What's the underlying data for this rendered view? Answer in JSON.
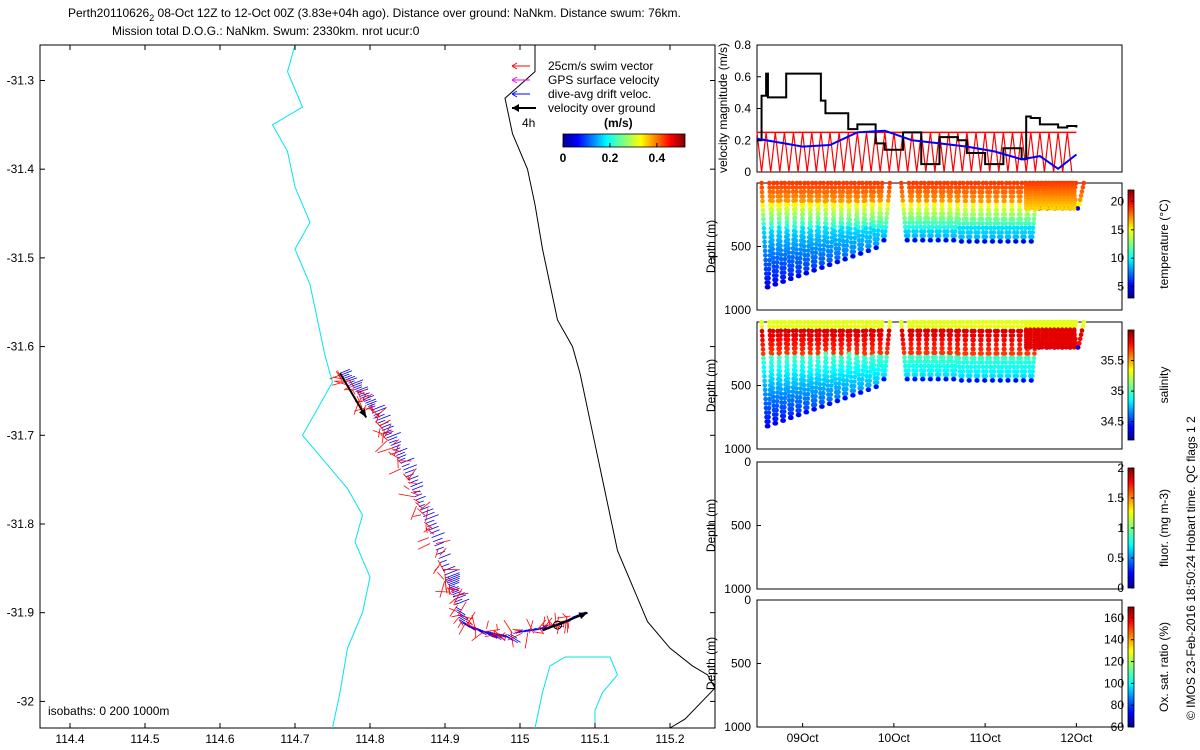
{
  "title": {
    "line1_prefix": "Perth20110626",
    "line1_sub": "2",
    "line1_rest": " 08-Oct 12Z to 12-Oct 00Z (3.83e+04h ago). Distance over ground: NaNkm. Distance swum: 76km.",
    "line2": "Mission total D.O.G.: NaNkm. Swum: 2330km. nrot ucur:0"
  },
  "colors": {
    "swim": "#ff0000",
    "gps": "#ff00ff",
    "drift": "#0000ff",
    "ground": "#000000",
    "coast": "#00e5ee",
    "isobath": "#000000"
  },
  "map": {
    "x_ticks": [
      "114.4",
      "114.5",
      "114.6",
      "114.7",
      "114.8",
      "114.9",
      "115",
      "115.1",
      "115.2"
    ],
    "y_ticks": [
      "-31.3",
      "-31.4",
      "-31.5",
      "-31.6",
      "-31.7",
      "-31.8",
      "-31.9",
      "-32"
    ],
    "xlim": [
      114.36,
      115.26
    ],
    "ylim": [
      -32.03,
      -31.26
    ],
    "isobath_label": "isobaths: 0   200   1000m",
    "legend": {
      "swim": "25cm/s swim vector",
      "gps": "GPS surface velocity",
      "drift": "dive-avg drift veloc.",
      "ground": "velocity over ground",
      "scale_label": "4h"
    },
    "colorbar": {
      "title": "(m/s)",
      "ticks": [
        "0",
        "0.2",
        "0.4"
      ],
      "range": [
        0,
        0.52
      ]
    },
    "track": [
      [
        114.76,
        -31.63
      ],
      [
        114.78,
        -31.65
      ],
      [
        114.8,
        -31.67
      ],
      [
        114.82,
        -31.7
      ],
      [
        114.84,
        -31.73
      ],
      [
        114.86,
        -31.77
      ],
      [
        114.88,
        -31.81
      ],
      [
        114.9,
        -31.86
      ],
      [
        114.91,
        -31.88
      ],
      [
        114.92,
        -31.91
      ],
      [
        114.95,
        -31.92
      ],
      [
        114.98,
        -31.925
      ],
      [
        115.02,
        -31.92
      ],
      [
        115.05,
        -31.915
      ],
      [
        115.07,
        -31.905
      ]
    ],
    "coast_line": [
      [
        114.7,
        -31.26
      ],
      [
        114.69,
        -31.29
      ],
      [
        114.71,
        -31.33
      ],
      [
        114.67,
        -31.35
      ],
      [
        114.69,
        -31.38
      ],
      [
        114.7,
        -31.42
      ],
      [
        114.72,
        -31.46
      ],
      [
        114.7,
        -31.49
      ],
      [
        114.72,
        -31.53
      ],
      [
        114.73,
        -31.57
      ],
      [
        114.74,
        -31.61
      ],
      [
        114.75,
        -31.64
      ],
      [
        114.73,
        -31.67
      ],
      [
        114.71,
        -31.7
      ],
      [
        114.74,
        -31.73
      ],
      [
        114.77,
        -31.76
      ],
      [
        114.79,
        -31.79
      ],
      [
        114.78,
        -31.82
      ],
      [
        114.8,
        -31.86
      ],
      [
        114.79,
        -31.9
      ],
      [
        114.77,
        -31.94
      ],
      [
        114.76,
        -31.99
      ],
      [
        114.75,
        -32.03
      ]
    ],
    "coast_line2": [
      [
        115.02,
        -32.03
      ],
      [
        115.03,
        -31.99
      ],
      [
        115.04,
        -31.96
      ],
      [
        115.06,
        -31.95
      ],
      [
        115.09,
        -31.95
      ],
      [
        115.12,
        -31.95
      ],
      [
        115.13,
        -31.97
      ],
      [
        115.11,
        -31.99
      ],
      [
        115.1,
        -32.01
      ],
      [
        115.1,
        -32.03
      ]
    ],
    "isobath_line": [
      [
        115.02,
        -31.26
      ],
      [
        115.02,
        -31.29
      ],
      [
        114.98,
        -31.32
      ],
      [
        114.99,
        -31.36
      ],
      [
        115.01,
        -31.4
      ],
      [
        115.02,
        -31.44
      ],
      [
        115.03,
        -31.49
      ],
      [
        115.04,
        -31.53
      ],
      [
        115.05,
        -31.57
      ],
      [
        115.07,
        -31.6
      ],
      [
        115.08,
        -31.63
      ],
      [
        115.09,
        -31.67
      ],
      [
        115.1,
        -31.71
      ],
      [
        115.11,
        -31.75
      ],
      [
        115.12,
        -31.79
      ],
      [
        115.13,
        -31.83
      ],
      [
        115.15,
        -31.87
      ],
      [
        115.17,
        -31.91
      ],
      [
        115.2,
        -31.94
      ],
      [
        115.23,
        -31.96
      ],
      [
        115.25,
        -31.97
      ],
      [
        115.26,
        -31.985
      ],
      [
        115.22,
        -32.02
      ],
      [
        115.2,
        -32.03
      ]
    ]
  },
  "chart_data": [
    {
      "type": "line",
      "panel": "velocity",
      "ylabel": "velocity magnitude (m/s)",
      "ylim": [
        0,
        0.8
      ],
      "y_ticks": [
        "0",
        "0.2",
        "0.4",
        "0.6",
        "0.8"
      ],
      "xlim": [
        8.5,
        12.5
      ],
      "series": [
        {
          "name": "velocity over ground",
          "color": "#000000",
          "x": [
            8.5,
            8.55,
            8.6,
            8.62,
            8.8,
            8.82,
            9.2,
            9.25,
            9.5,
            9.6,
            9.8,
            9.9,
            10.1,
            10.3,
            10.5,
            10.7,
            10.8,
            11.0,
            11.2,
            11.4,
            11.45,
            11.5,
            11.6,
            11.8,
            11.9,
            12.0
          ],
          "y": [
            0.2,
            0.48,
            0.62,
            0.47,
            0.47,
            0.62,
            0.45,
            0.37,
            0.27,
            0.3,
            0.18,
            0.14,
            0.25,
            0.05,
            0.22,
            0.2,
            0.12,
            0.05,
            0.15,
            0.08,
            0.35,
            0.34,
            0.3,
            0.28,
            0.29,
            0.28
          ]
        },
        {
          "name": "dive-avg drift veloc.",
          "color": "#0000ff",
          "x": [
            8.5,
            8.8,
            9.0,
            9.3,
            9.6,
            9.9,
            10.2,
            10.5,
            10.8,
            11.1,
            11.4,
            11.6,
            11.8,
            12.0
          ],
          "y": [
            0.21,
            0.18,
            0.16,
            0.17,
            0.25,
            0.26,
            0.2,
            0.18,
            0.16,
            0.13,
            0.08,
            0.1,
            0.02,
            0.11
          ]
        },
        {
          "name": "swim vector",
          "color": "#ff0000",
          "x": [
            8.5,
            8.7,
            8.9,
            9.1,
            9.3,
            9.5,
            9.7,
            9.9,
            10.1,
            10.3,
            10.5,
            10.7,
            10.9,
            11.1,
            11.3,
            11.5,
            11.7,
            11.9,
            12.0
          ],
          "y": [
            0.25,
            0.25,
            0.25,
            0.25,
            0.25,
            0.25,
            0.25,
            0.25,
            0.25,
            0.25,
            0.25,
            0.25,
            0.25,
            0.25,
            0.25,
            0.25,
            0.25,
            0.25,
            0.25
          ]
        }
      ]
    },
    {
      "type": "heatmap",
      "panel": "temperature",
      "ylabel": "Depth (m)",
      "ylim": [
        1000,
        0
      ],
      "y_ticks": [
        "500",
        "1000"
      ],
      "colorbar_label": "temperature (°C)",
      "colorbar_ticks": [
        "20",
        "15",
        "10",
        "5"
      ],
      "crange": [
        3,
        22
      ]
    },
    {
      "type": "heatmap",
      "panel": "salinity",
      "ylabel": "Depth (m)",
      "ylim": [
        1000,
        0
      ],
      "y_ticks": [
        "500",
        "1000"
      ],
      "colorbar_label": "salinity",
      "colorbar_ticks": [
        "35.5",
        "35",
        "34.5"
      ],
      "crange": [
        34.2,
        36.0
      ]
    },
    {
      "type": "heatmap",
      "panel": "fluorescence",
      "ylabel": "Depth (m)",
      "ylim": [
        1000,
        0
      ],
      "y_ticks": [
        "0",
        "500",
        "1000"
      ],
      "colorbar_label": "fluor. (mg m-3)",
      "colorbar_ticks": [
        "2",
        "1.5",
        "1",
        "0.5",
        "0"
      ],
      "crange": [
        0,
        2
      ]
    },
    {
      "type": "heatmap",
      "panel": "oxygen",
      "ylabel": "Depth (m)",
      "ylim": [
        1000,
        0
      ],
      "y_ticks": [
        "0",
        "500",
        "1000"
      ],
      "colorbar_label": "Ox. sat. ratio (%)",
      "colorbar_ticks": [
        "160",
        "140",
        "120",
        "100",
        "80",
        "60"
      ],
      "crange": [
        60,
        170
      ],
      "x_ticks": [
        "09Oct",
        "10Oct",
        "11Oct",
        "12Oct"
      ],
      "x_values": [
        9,
        10,
        11,
        12
      ]
    }
  ],
  "footer": "© IMOS 23-Feb-2016 18:50:24 Hobart time. QC flags 1  2"
}
